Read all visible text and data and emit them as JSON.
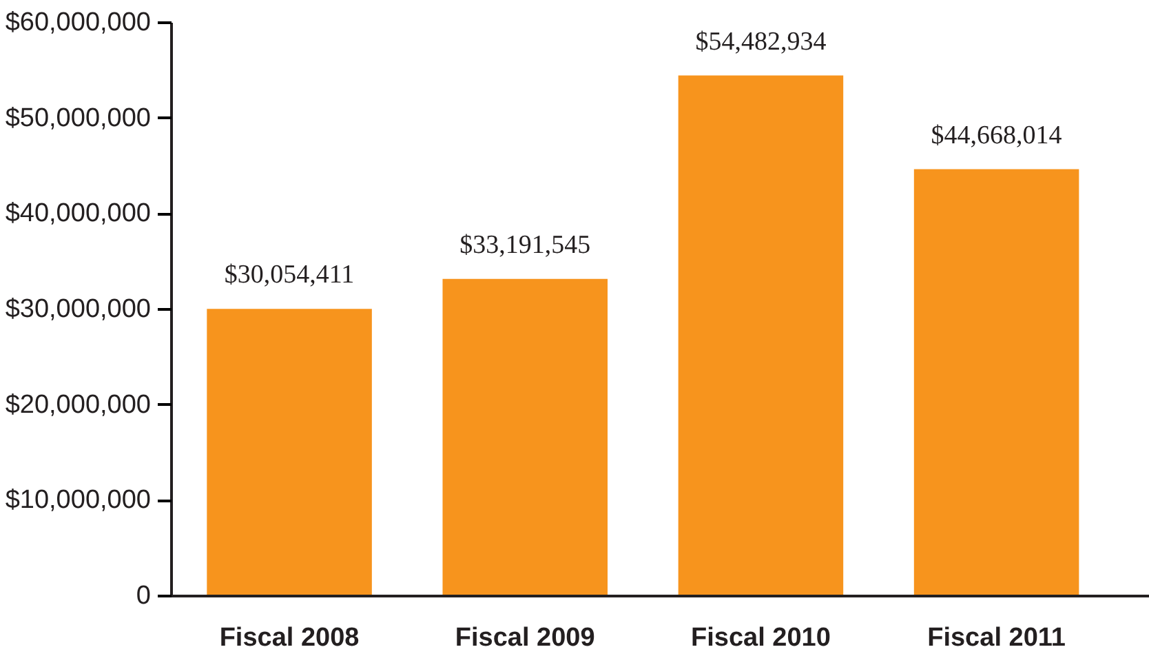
{
  "chart_data": {
    "type": "bar",
    "categories": [
      "Fiscal 2008",
      "Fiscal 2009",
      "Fiscal 2010",
      "Fiscal 2011"
    ],
    "values": [
      30054411,
      33191545,
      54482934,
      44668014
    ],
    "value_labels": [
      "$30,054,411",
      "$33,191,545",
      "$54,482,934",
      "$44,668,014"
    ],
    "color": "#f7941d",
    "ylim": [
      0,
      60000000
    ],
    "yticks": [
      {
        "value": 0,
        "label": "0"
      },
      {
        "value": 10000000,
        "label": "$10,000,000"
      },
      {
        "value": 20000000,
        "label": "$20,000,000"
      },
      {
        "value": 30000000,
        "label": "$30,000,000"
      },
      {
        "value": 40000000,
        "label": "$40,000,000"
      },
      {
        "value": 50000000,
        "label": "$50,000,000"
      },
      {
        "value": 60000000,
        "label": "$60,000,000"
      }
    ],
    "grid": false
  }
}
